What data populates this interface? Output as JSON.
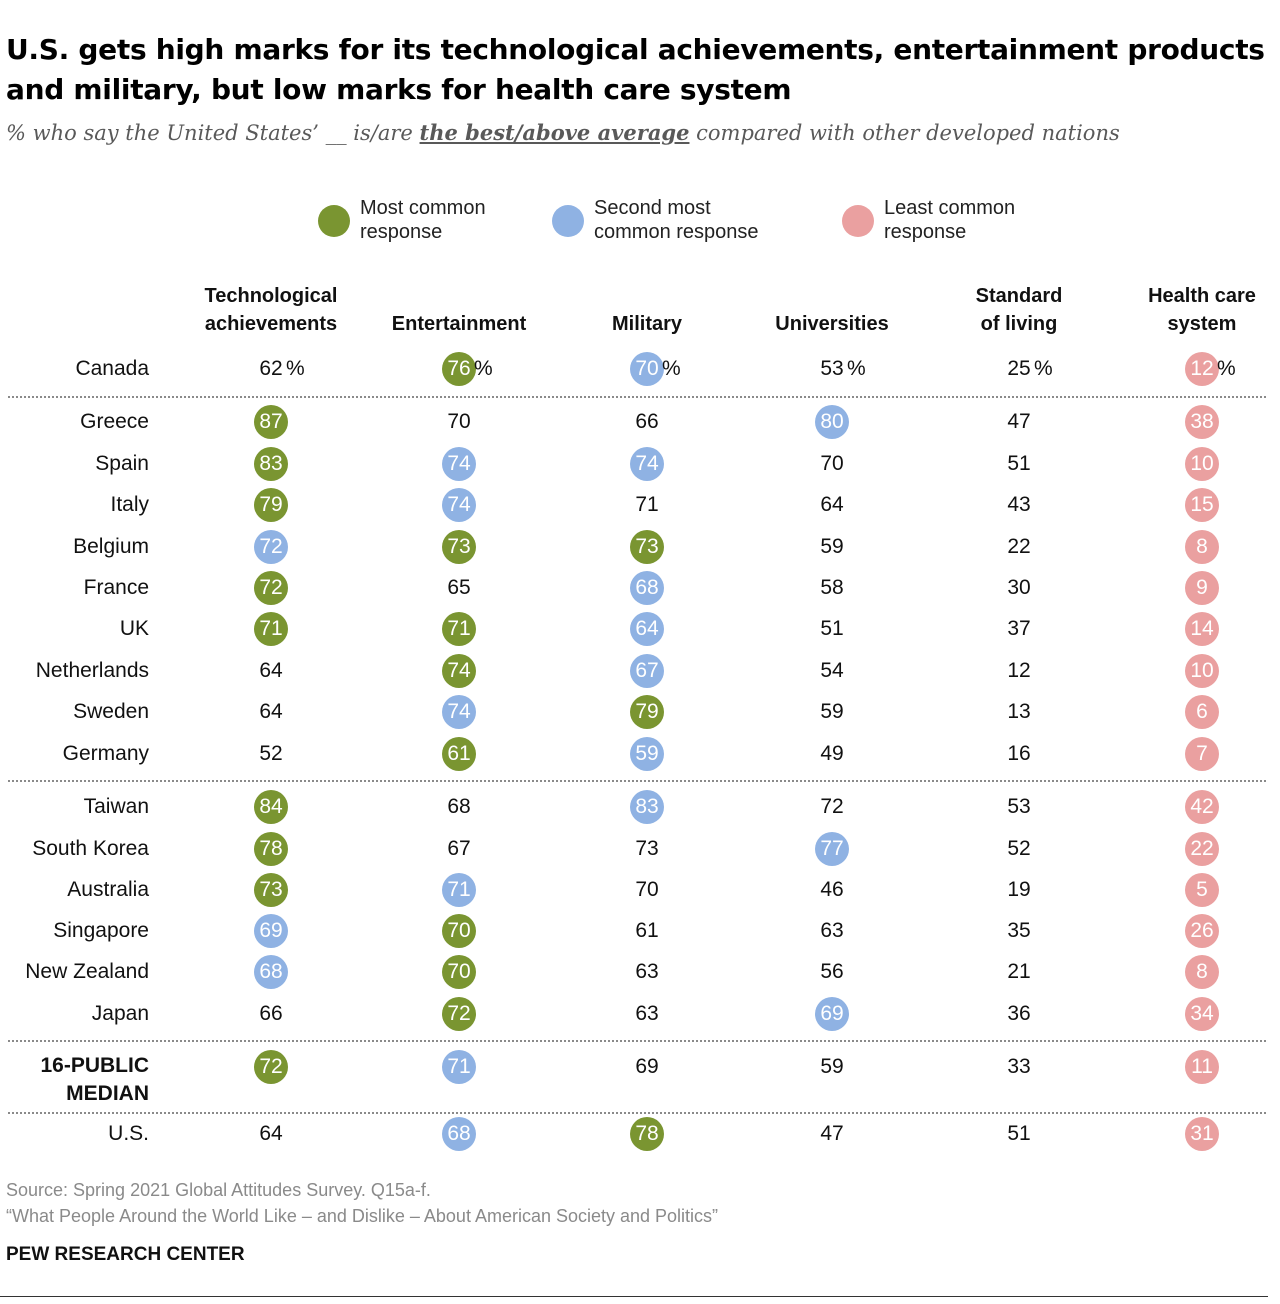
{
  "title": "U.S. gets high marks for its technological achievements, entertainment products and military, but low marks for health care system",
  "subtitle": {
    "before": "% who say the United States’ __ is/are ",
    "emphasis": "the best/above average",
    "after": " compared with other developed nations"
  },
  "colors": {
    "most_common": "#7a9531",
    "second_most_common": "#8fb2e3",
    "least_common": "#eaa0a0"
  },
  "legend": [
    {
      "key": "most",
      "label_line1": "Most common",
      "label_line2": "response"
    },
    {
      "key": "second",
      "label_line1": "Second most",
      "label_line2": "common response"
    },
    {
      "key": "least",
      "label_line1": "Least common",
      "label_line2": "response"
    }
  ],
  "chart_data": {
    "type": "table",
    "columns": [
      {
        "line1": "Technological",
        "line2": "achievements"
      },
      {
        "line1": "",
        "line2": "Entertainment"
      },
      {
        "line1": "",
        "line2": "Military"
      },
      {
        "line1": "",
        "line2": "Universities"
      },
      {
        "line1": "Standard",
        "line2": "of living"
      },
      {
        "line1": "Health care",
        "line2": "system"
      }
    ],
    "rows": [
      {
        "label": "Canada",
        "values": [
          62,
          76,
          70,
          53,
          25,
          12
        ],
        "categories": [
          "",
          "most",
          "second",
          "",
          "",
          "least"
        ],
        "percent": true
      },
      {
        "label": "Greece",
        "values": [
          87,
          70,
          66,
          80,
          47,
          38
        ],
        "categories": [
          "most",
          "",
          "",
          "second",
          "",
          "least"
        ]
      },
      {
        "label": "Spain",
        "values": [
          83,
          74,
          74,
          70,
          51,
          10
        ],
        "categories": [
          "most",
          "second",
          "second",
          "",
          "",
          "least"
        ]
      },
      {
        "label": "Italy",
        "values": [
          79,
          74,
          71,
          64,
          43,
          15
        ],
        "categories": [
          "most",
          "second",
          "",
          "",
          "",
          "least"
        ]
      },
      {
        "label": "Belgium",
        "values": [
          72,
          73,
          73,
          59,
          22,
          8
        ],
        "categories": [
          "second",
          "most",
          "most",
          "",
          "",
          "least"
        ]
      },
      {
        "label": "France",
        "values": [
          72,
          65,
          68,
          58,
          30,
          9
        ],
        "categories": [
          "most",
          "",
          "second",
          "",
          "",
          "least"
        ]
      },
      {
        "label": "UK",
        "values": [
          71,
          71,
          64,
          51,
          37,
          14
        ],
        "categories": [
          "most",
          "most",
          "second",
          "",
          "",
          "least"
        ]
      },
      {
        "label": "Netherlands",
        "values": [
          64,
          74,
          67,
          54,
          12,
          10
        ],
        "categories": [
          "",
          "most",
          "second",
          "",
          "",
          "least"
        ]
      },
      {
        "label": "Sweden",
        "values": [
          64,
          74,
          79,
          59,
          13,
          6
        ],
        "categories": [
          "",
          "second",
          "most",
          "",
          "",
          "least"
        ]
      },
      {
        "label": "Germany",
        "values": [
          52,
          61,
          59,
          49,
          16,
          7
        ],
        "categories": [
          "",
          "most",
          "second",
          "",
          "",
          "least"
        ]
      },
      {
        "label": "Taiwan",
        "values": [
          84,
          68,
          83,
          72,
          53,
          42
        ],
        "categories": [
          "most",
          "",
          "second",
          "",
          "",
          "least"
        ]
      },
      {
        "label": "South Korea",
        "values": [
          78,
          67,
          73,
          77,
          52,
          22
        ],
        "categories": [
          "most",
          "",
          "",
          "second",
          "",
          "least"
        ]
      },
      {
        "label": "Australia",
        "values": [
          73,
          71,
          70,
          46,
          19,
          5
        ],
        "categories": [
          "most",
          "second",
          "",
          "",
          "",
          "least"
        ]
      },
      {
        "label": "Singapore",
        "values": [
          69,
          70,
          61,
          63,
          35,
          26
        ],
        "categories": [
          "second",
          "most",
          "",
          "",
          "",
          "least"
        ]
      },
      {
        "label": "New Zealand",
        "values": [
          68,
          70,
          63,
          56,
          21,
          8
        ],
        "categories": [
          "second",
          "most",
          "",
          "",
          "",
          "least"
        ]
      },
      {
        "label": "Japan",
        "values": [
          66,
          72,
          63,
          69,
          36,
          34
        ],
        "categories": [
          "",
          "most",
          "",
          "second",
          "",
          "least"
        ]
      },
      {
        "label_line1": "16-PUBLIC",
        "label_line2": "MEDIAN",
        "values": [
          72,
          71,
          69,
          59,
          33,
          11
        ],
        "categories": [
          "most",
          "second",
          "",
          "",
          "",
          "least"
        ],
        "bold": true
      },
      {
        "label": "U.S.",
        "values": [
          64,
          68,
          78,
          47,
          51,
          31
        ],
        "categories": [
          "",
          "second",
          "most",
          "",
          "",
          "least"
        ]
      }
    ]
  },
  "source": {
    "line1": "Source: Spring 2021 Global Attitudes Survey. Q15a-f.",
    "line2": "“What People Around the World Like – and Dislike – About American Society and Politics”"
  },
  "brand": "PEW RESEARCH CENTER"
}
